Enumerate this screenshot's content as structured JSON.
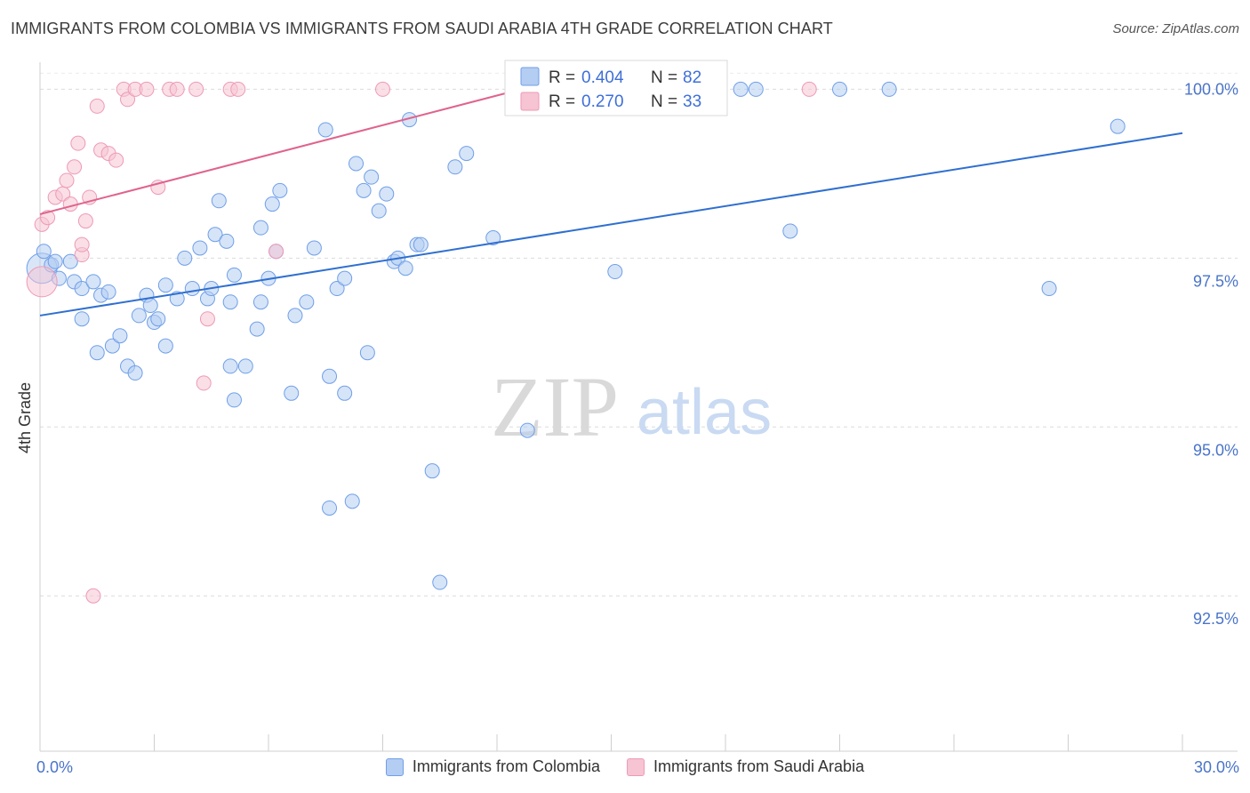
{
  "title": "IMMIGRANTS FROM COLOMBIA VS IMMIGRANTS FROM SAUDI ARABIA 4TH GRADE CORRELATION CHART",
  "source": "Source: ZipAtlas.com",
  "watermark": {
    "zip": "ZIP",
    "atlas": "atlas"
  },
  "chart_data": {
    "type": "scatter",
    "title": "IMMIGRANTS FROM COLOMBIA VS IMMIGRANTS FROM SAUDI ARABIA 4TH GRADE CORRELATION CHART",
    "xlabel": "",
    "ylabel": "4th Grade",
    "xlim": [
      0,
      30
    ],
    "ylim": [
      90.2,
      100.4
    ],
    "x_tick_labels": [
      {
        "value": 0,
        "label": "0.0%"
      },
      {
        "value": 30,
        "label": "30.0%"
      }
    ],
    "y_tick_labels": [
      {
        "value": 100.0,
        "label": "100.0%"
      },
      {
        "value": 97.5,
        "label": "97.5%"
      },
      {
        "value": 95.0,
        "label": "95.0%"
      },
      {
        "value": 92.5,
        "label": "92.5%"
      }
    ],
    "x_minor_ticks": [
      3,
      6,
      9,
      12,
      15,
      18,
      21,
      24,
      27,
      30
    ],
    "grid": true,
    "legend": {
      "placement": "top-center",
      "entries": [
        {
          "r_label": "R =",
          "r_value": "0.404",
          "n_label": "N =",
          "n_value": "82"
        },
        {
          "r_label": "R =",
          "r_value": "0.270",
          "n_label": "N =",
          "n_value": "33"
        }
      ]
    },
    "series": [
      {
        "name": "Immigrants from Colombia",
        "color": "#6f9fe8",
        "fill": "#b4cdf2",
        "trend_color": "#2f6fd0",
        "trend": {
          "x": [
            0,
            30
          ],
          "y": [
            96.65,
            99.35
          ]
        },
        "points": [
          [
            0.05,
            97.35
          ],
          [
            0.3,
            97.4
          ],
          [
            0.5,
            97.2
          ],
          [
            0.9,
            97.15
          ],
          [
            1.1,
            97.05
          ],
          [
            1.4,
            97.15
          ],
          [
            1.6,
            96.95
          ],
          [
            1.9,
            96.2
          ],
          [
            2.1,
            96.35
          ],
          [
            2.3,
            95.9
          ],
          [
            2.6,
            96.65
          ],
          [
            2.8,
            96.95
          ],
          [
            2.9,
            96.8
          ],
          [
            3.0,
            96.55
          ],
          [
            3.3,
            97.1
          ],
          [
            3.1,
            96.6
          ],
          [
            3.6,
            96.9
          ],
          [
            3.8,
            97.5
          ],
          [
            4.0,
            97.05
          ],
          [
            4.4,
            96.9
          ],
          [
            4.5,
            97.05
          ],
          [
            4.2,
            97.65
          ],
          [
            4.6,
            97.85
          ],
          [
            4.7,
            98.35
          ],
          [
            4.9,
            97.75
          ],
          [
            5.0,
            96.85
          ],
          [
            5.1,
            97.25
          ],
          [
            5.0,
            95.9
          ],
          [
            5.1,
            95.4
          ],
          [
            5.4,
            95.9
          ],
          [
            5.7,
            96.45
          ],
          [
            5.8,
            96.85
          ],
          [
            5.8,
            97.95
          ],
          [
            6.0,
            97.2
          ],
          [
            6.1,
            98.3
          ],
          [
            6.2,
            97.6
          ],
          [
            6.3,
            98.5
          ],
          [
            6.6,
            95.5
          ],
          [
            7.0,
            96.85
          ],
          [
            7.2,
            97.65
          ],
          [
            7.5,
            99.4
          ],
          [
            7.6,
            95.75
          ],
          [
            7.8,
            97.05
          ],
          [
            8.0,
            97.2
          ],
          [
            8.0,
            95.5
          ],
          [
            8.3,
            98.9
          ],
          [
            8.5,
            98.5
          ],
          [
            8.6,
            96.1
          ],
          [
            8.7,
            98.7
          ],
          [
            8.9,
            98.2
          ],
          [
            9.1,
            98.45
          ],
          [
            9.3,
            97.45
          ],
          [
            9.4,
            97.5
          ],
          [
            9.6,
            97.35
          ],
          [
            9.7,
            99.55
          ],
          [
            9.9,
            97.7
          ],
          [
            10.0,
            97.7
          ],
          [
            10.3,
            94.35
          ],
          [
            10.5,
            92.7
          ],
          [
            7.6,
            93.8
          ],
          [
            8.2,
            93.9
          ],
          [
            10.9,
            98.85
          ],
          [
            11.9,
            97.8
          ],
          [
            11.2,
            99.05
          ],
          [
            12.8,
            94.95
          ],
          [
            15.1,
            97.3
          ],
          [
            18.4,
            100.0
          ],
          [
            18.8,
            100.0
          ],
          [
            19.7,
            97.9
          ],
          [
            21.0,
            100.0
          ],
          [
            22.3,
            100.0
          ],
          [
            26.5,
            97.05
          ],
          [
            28.3,
            99.45
          ],
          [
            0.1,
            97.6
          ],
          [
            0.4,
            97.45
          ],
          [
            1.1,
            96.6
          ],
          [
            3.3,
            96.2
          ],
          [
            2.5,
            95.8
          ],
          [
            1.5,
            96.1
          ],
          [
            6.7,
            96.65
          ],
          [
            0.8,
            97.45
          ],
          [
            1.8,
            97.0
          ]
        ]
      },
      {
        "name": "Immigrants from Saudi Arabia",
        "color": "#ee9ab5",
        "fill": "#f6c4d3",
        "trend_color": "#e0638c",
        "trend": {
          "x": [
            0,
            14.0
          ],
          "y": [
            98.15,
            100.2
          ]
        },
        "points": [
          [
            0.05,
            97.15
          ],
          [
            0.05,
            98.0
          ],
          [
            0.2,
            98.1
          ],
          [
            0.4,
            98.4
          ],
          [
            0.6,
            98.45
          ],
          [
            0.7,
            98.65
          ],
          [
            0.8,
            98.3
          ],
          [
            0.9,
            98.85
          ],
          [
            1.0,
            99.2
          ],
          [
            1.1,
            97.55
          ],
          [
            1.2,
            98.05
          ],
          [
            1.3,
            98.4
          ],
          [
            1.5,
            99.75
          ],
          [
            1.6,
            99.1
          ],
          [
            1.8,
            99.05
          ],
          [
            2.0,
            98.95
          ],
          [
            2.2,
            100.0
          ],
          [
            2.3,
            99.85
          ],
          [
            2.5,
            100.0
          ],
          [
            2.8,
            100.0
          ],
          [
            3.1,
            98.55
          ],
          [
            3.4,
            100.0
          ],
          [
            3.6,
            100.0
          ],
          [
            4.1,
            100.0
          ],
          [
            4.3,
            95.65
          ],
          [
            4.4,
            96.6
          ],
          [
            5.0,
            100.0
          ],
          [
            5.2,
            100.0
          ],
          [
            6.2,
            97.6
          ],
          [
            9.0,
            100.0
          ],
          [
            20.2,
            100.0
          ],
          [
            1.4,
            92.5
          ],
          [
            1.1,
            97.7
          ]
        ]
      }
    ]
  },
  "bottom_legend": [
    {
      "label": "Immigrants from Colombia"
    },
    {
      "label": "Immigrants from Saudi Arabia"
    }
  ]
}
